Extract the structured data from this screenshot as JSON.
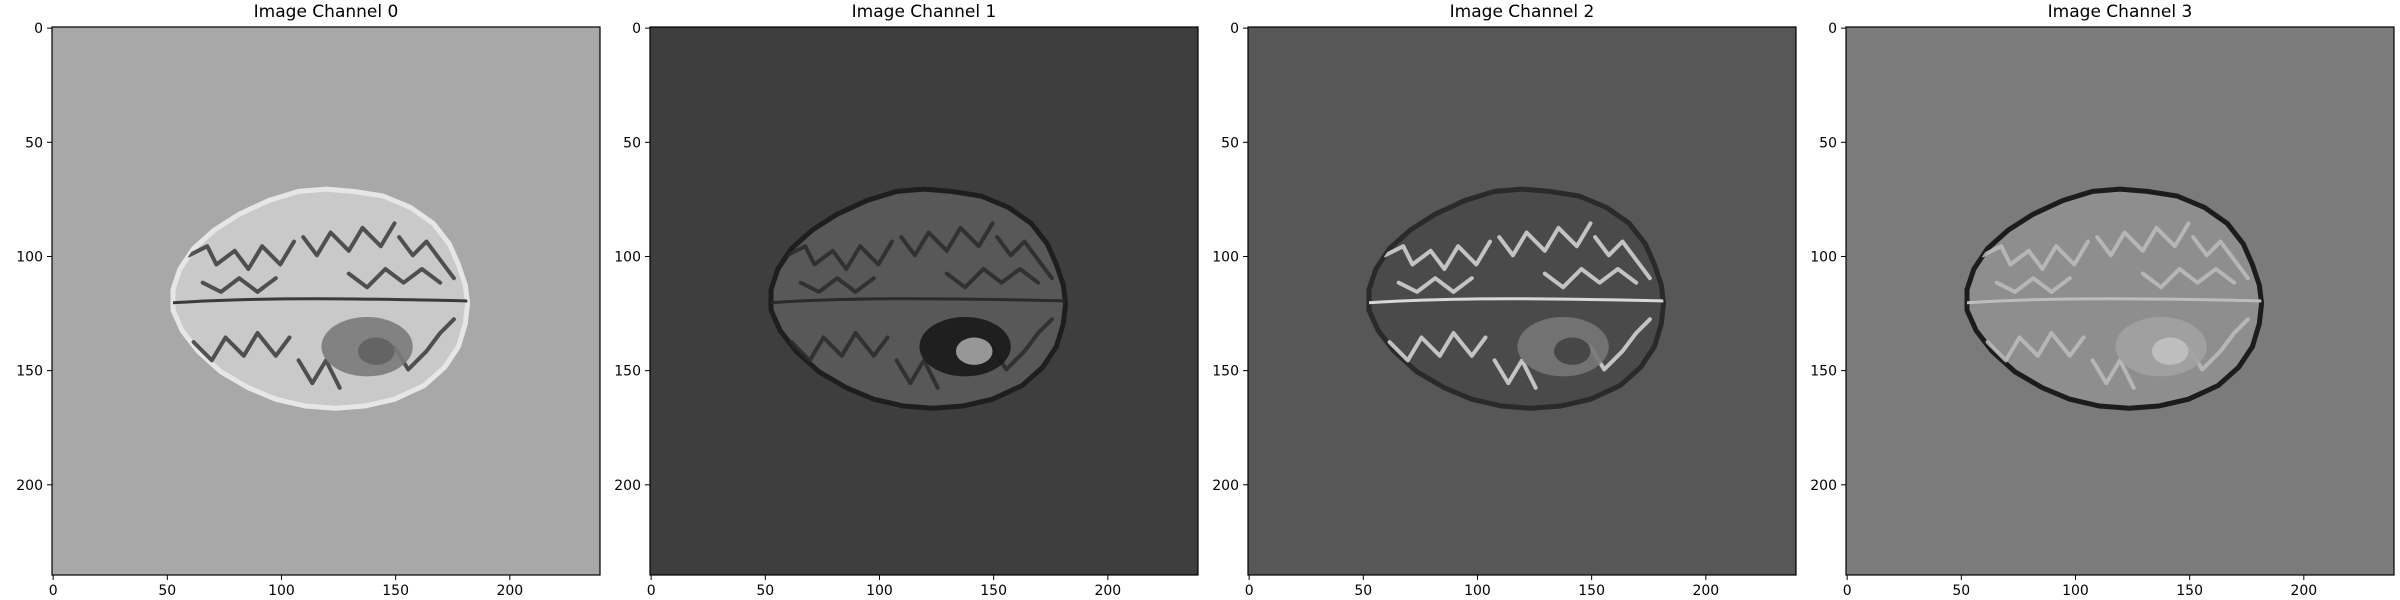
{
  "figure": {
    "panels": [
      {
        "title": "Image Channel 0",
        "background": "#a8a8a8",
        "brain_fill": "#c9c9c9",
        "sulci_color": "#3a3a3a",
        "lesion_fill": "#7a7a7a",
        "lesion_core": "#5a5a5a",
        "rim_color": "#e6e6e6"
      },
      {
        "title": "Image Channel 1",
        "background": "#3e3e3e",
        "brain_fill": "#585858",
        "sulci_color": "#2a2a2a",
        "lesion_fill": "#1a1a1a",
        "lesion_core": "#c0c0c0",
        "rim_color": "#1e1e1e"
      },
      {
        "title": "Image Channel 2",
        "background": "#575757",
        "brain_fill": "#4a4a4a",
        "sulci_color": "#d8d8d8",
        "lesion_fill": "#777777",
        "lesion_core": "#3a3a3a",
        "rim_color": "#2a2a2a"
      },
      {
        "title": "Image Channel 3",
        "background": "#7b7b7b",
        "brain_fill": "#8e8e8e",
        "sulci_color": "#bdbdbd",
        "lesion_fill": "#a2a2a2",
        "lesion_core": "#c8c8c8",
        "rim_color": "#1c1c1c"
      }
    ],
    "x_ticks": [
      "0",
      "50",
      "100",
      "150",
      "200"
    ],
    "y_ticks": [
      "0",
      "50",
      "100",
      "150",
      "200"
    ],
    "axis_color": "#000000"
  }
}
